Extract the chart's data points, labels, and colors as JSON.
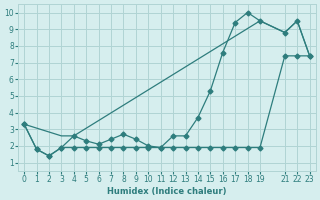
{
  "xlabel": "Humidex (Indice chaleur)",
  "ylabel": "",
  "bg_color": "#d6eeee",
  "grid_color": "#b0d4d4",
  "line_color": "#2e7d7d",
  "xlim": [
    -0.5,
    23.5
  ],
  "ylim": [
    0.5,
    10.5
  ],
  "xticks": [
    0,
    1,
    2,
    3,
    4,
    5,
    6,
    7,
    8,
    9,
    10,
    11,
    12,
    13,
    14,
    15,
    16,
    17,
    18,
    19,
    21,
    22,
    23
  ],
  "yticks": [
    1,
    2,
    3,
    4,
    5,
    6,
    7,
    8,
    9,
    10
  ],
  "line1_x": [
    0,
    1,
    2,
    3,
    4,
    5,
    6,
    7,
    8,
    9,
    10,
    11,
    12,
    13,
    14,
    15,
    16,
    17,
    18,
    19,
    21,
    22,
    23
  ],
  "line1_y": [
    3.3,
    1.8,
    1.4,
    1.9,
    2.6,
    2.3,
    2.1,
    2.4,
    2.7,
    2.4,
    2.0,
    1.9,
    2.6,
    2.6,
    3.7,
    5.3,
    7.6,
    9.4,
    10.0,
    9.5,
    8.8,
    9.5,
    7.4
  ],
  "line2_x": [
    0,
    3,
    4,
    19,
    21,
    22,
    23
  ],
  "line2_y": [
    3.3,
    2.6,
    2.6,
    9.5,
    8.8,
    9.5,
    7.4
  ],
  "line3_x": [
    0,
    1,
    2,
    3,
    4,
    5,
    6,
    7,
    8,
    9,
    10,
    11,
    12,
    13,
    14,
    15,
    16,
    17,
    18,
    19,
    21,
    22,
    23
  ],
  "line3_y": [
    3.3,
    1.8,
    1.4,
    1.9,
    1.9,
    1.9,
    1.9,
    1.9,
    1.9,
    1.9,
    1.9,
    1.9,
    1.9,
    1.9,
    1.9,
    1.9,
    1.9,
    1.9,
    1.9,
    1.9,
    7.4,
    7.4,
    7.4
  ]
}
